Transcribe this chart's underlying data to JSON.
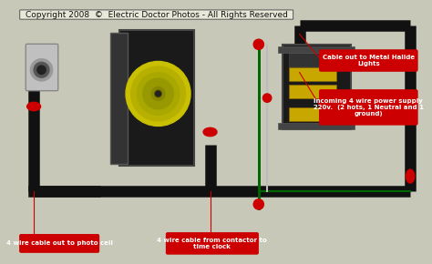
{
  "title": "Copyright 2008  ©  Electric Doctor Photos - All Rights Reserved",
  "title_fontsize": 6.5,
  "bg_color": "#c8c8b8",
  "labels": {
    "photo_cell": "4 wire cable out to photo cell",
    "time_clock": "4 wire cable from contactor to\ntime clock",
    "metal_halide": "Cable out to Metal Halide\nLights",
    "power_supply": "Incoming 4 wire power supply\n220v.  (2 hots, 1 Neutral and 1\nground)"
  },
  "label_box_color": "#cc0000",
  "label_text_color": "#ffffff",
  "label_fontsize": 5.0,
  "wire_colors": {
    "black": "#111111",
    "red": "#cc0000",
    "green": "#006600",
    "white": "#bbbbbb"
  },
  "component_colors": {
    "photo_cell_body": "#c0c0c0",
    "photo_cell_border": "#888888",
    "timer_body": "#1a1a1a",
    "timer_face": "#c8c000",
    "contactor_body": "#1a1a1a",
    "contactor_detail": "#c8a000"
  }
}
